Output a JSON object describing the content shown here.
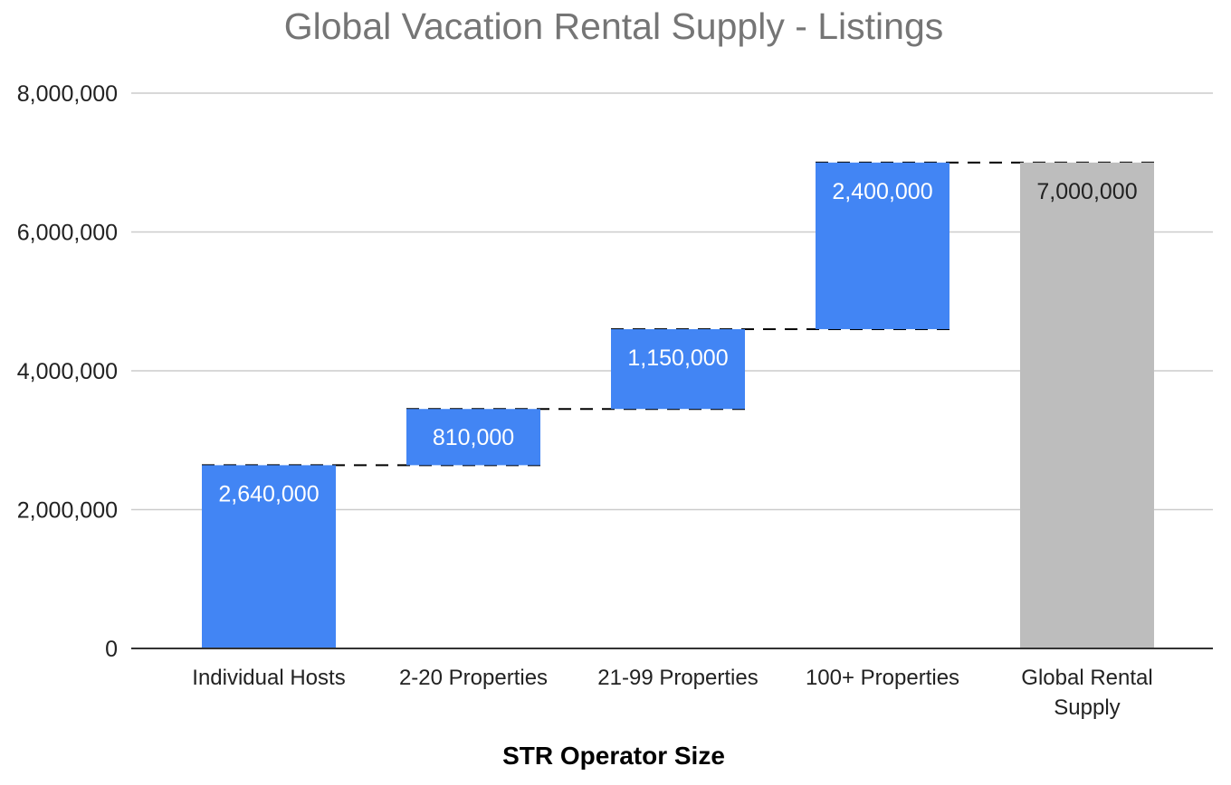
{
  "chart_data": {
    "type": "bar",
    "subtype": "waterfall",
    "title": "Global Vacation Rental Supply - Listings",
    "xlabel": "STR Operator Size",
    "ylabel": "",
    "ylim": [
      0,
      8000000
    ],
    "yticks": [
      0,
      2000000,
      4000000,
      6000000,
      8000000
    ],
    "ytick_labels": [
      "0",
      "2,000,000",
      "4,000,000",
      "6,000,000",
      "8,000,000"
    ],
    "categories": [
      [
        "Individual Hosts"
      ],
      [
        "2-20 Properties"
      ],
      [
        "21-99 Properties"
      ],
      [
        "100+ Properties"
      ],
      [
        "Global Rental",
        "Supply"
      ]
    ],
    "values": [
      2640000,
      810000,
      1150000,
      2400000,
      7000000
    ],
    "data_labels": [
      "2,640,000",
      "810,000",
      "1,150,000",
      "2,400,000",
      "7,000,000"
    ],
    "is_total": [
      false,
      false,
      false,
      false,
      true
    ],
    "grid": true,
    "legend": "none",
    "connectors": "dashed",
    "colors": {
      "increase": "#4285F4",
      "total": "#BDBDBD",
      "increase_label": "#FFFFFF",
      "total_label": "#222222",
      "grid": "#CCCCCC",
      "axis": "#333333",
      "connector": "#000000"
    }
  }
}
